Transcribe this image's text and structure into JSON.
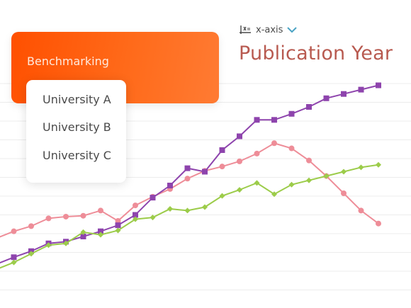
{
  "axis_selector": {
    "icon": "axis-swap-icon",
    "label": "x-axis",
    "chevron_icon": "chevron-down-icon"
  },
  "axis_title": "Publication Year",
  "benchmarking": {
    "title": "Benchmarking",
    "accent_color": "#ff5a00",
    "options": [
      "University A",
      "University B",
      "University C"
    ]
  },
  "chart_data": {
    "type": "line",
    "xlabel": "Publication Year",
    "ylabel": "",
    "grid": true,
    "x": [
      1,
      2,
      3,
      4,
      5,
      6,
      7,
      8,
      9,
      10,
      11,
      12,
      13,
      14,
      15,
      16,
      17,
      18,
      19,
      20,
      21,
      22,
      23
    ],
    "series": [
      {
        "color": "#ee8d98",
        "marker": "circle",
        "values": [
          48,
          56,
          62,
          71,
          73,
          74,
          80,
          68,
          86,
          96,
          105,
          117,
          126,
          131,
          137,
          146,
          158,
          152,
          138,
          120,
          100,
          80,
          65
        ]
      },
      {
        "color": "#8e44ad",
        "marker": "square",
        "values": [
          18,
          26,
          33,
          42,
          44,
          50,
          56,
          63,
          75,
          95,
          109,
          129,
          125,
          150,
          166,
          185,
          185,
          192,
          200,
          210,
          215,
          220,
          225
        ]
      },
      {
        "color": "#9ccc4a",
        "marker": "diamond",
        "values": [
          12,
          20,
          30,
          40,
          42,
          55,
          52,
          57,
          70,
          72,
          82,
          80,
          84,
          97,
          104,
          112,
          99,
          110,
          115,
          120,
          125,
          130,
          133
        ]
      }
    ]
  }
}
